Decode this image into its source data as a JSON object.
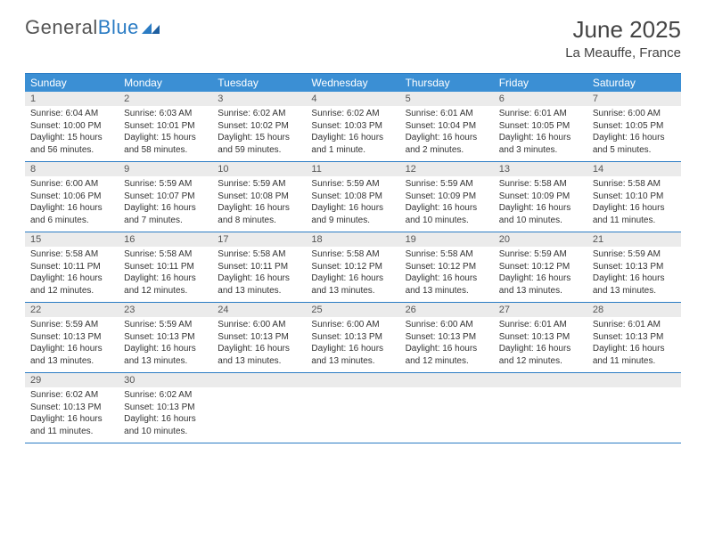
{
  "logo": {
    "part1": "General",
    "part2": "Blue"
  },
  "title": "June 2025",
  "location": "La Meauffe, France",
  "colors": {
    "header_bar": "#3b8fd4",
    "border": "#2b7cc4",
    "daynum_bg": "#ebebeb",
    "text": "#333333",
    "logo_gray": "#555555",
    "logo_blue": "#2b7cc4"
  },
  "day_headers": [
    "Sunday",
    "Monday",
    "Tuesday",
    "Wednesday",
    "Thursday",
    "Friday",
    "Saturday"
  ],
  "weeks": [
    [
      {
        "n": "1",
        "sunrise": "6:04 AM",
        "sunset": "10:00 PM",
        "daylight": "15 hours and 56 minutes."
      },
      {
        "n": "2",
        "sunrise": "6:03 AM",
        "sunset": "10:01 PM",
        "daylight": "15 hours and 58 minutes."
      },
      {
        "n": "3",
        "sunrise": "6:02 AM",
        "sunset": "10:02 PM",
        "daylight": "15 hours and 59 minutes."
      },
      {
        "n": "4",
        "sunrise": "6:02 AM",
        "sunset": "10:03 PM",
        "daylight": "16 hours and 1 minute."
      },
      {
        "n": "5",
        "sunrise": "6:01 AM",
        "sunset": "10:04 PM",
        "daylight": "16 hours and 2 minutes."
      },
      {
        "n": "6",
        "sunrise": "6:01 AM",
        "sunset": "10:05 PM",
        "daylight": "16 hours and 3 minutes."
      },
      {
        "n": "7",
        "sunrise": "6:00 AM",
        "sunset": "10:05 PM",
        "daylight": "16 hours and 5 minutes."
      }
    ],
    [
      {
        "n": "8",
        "sunrise": "6:00 AM",
        "sunset": "10:06 PM",
        "daylight": "16 hours and 6 minutes."
      },
      {
        "n": "9",
        "sunrise": "5:59 AM",
        "sunset": "10:07 PM",
        "daylight": "16 hours and 7 minutes."
      },
      {
        "n": "10",
        "sunrise": "5:59 AM",
        "sunset": "10:08 PM",
        "daylight": "16 hours and 8 minutes."
      },
      {
        "n": "11",
        "sunrise": "5:59 AM",
        "sunset": "10:08 PM",
        "daylight": "16 hours and 9 minutes."
      },
      {
        "n": "12",
        "sunrise": "5:59 AM",
        "sunset": "10:09 PM",
        "daylight": "16 hours and 10 minutes."
      },
      {
        "n": "13",
        "sunrise": "5:58 AM",
        "sunset": "10:09 PM",
        "daylight": "16 hours and 10 minutes."
      },
      {
        "n": "14",
        "sunrise": "5:58 AM",
        "sunset": "10:10 PM",
        "daylight": "16 hours and 11 minutes."
      }
    ],
    [
      {
        "n": "15",
        "sunrise": "5:58 AM",
        "sunset": "10:11 PM",
        "daylight": "16 hours and 12 minutes."
      },
      {
        "n": "16",
        "sunrise": "5:58 AM",
        "sunset": "10:11 PM",
        "daylight": "16 hours and 12 minutes."
      },
      {
        "n": "17",
        "sunrise": "5:58 AM",
        "sunset": "10:11 PM",
        "daylight": "16 hours and 13 minutes."
      },
      {
        "n": "18",
        "sunrise": "5:58 AM",
        "sunset": "10:12 PM",
        "daylight": "16 hours and 13 minutes."
      },
      {
        "n": "19",
        "sunrise": "5:58 AM",
        "sunset": "10:12 PM",
        "daylight": "16 hours and 13 minutes."
      },
      {
        "n": "20",
        "sunrise": "5:59 AM",
        "sunset": "10:12 PM",
        "daylight": "16 hours and 13 minutes."
      },
      {
        "n": "21",
        "sunrise": "5:59 AM",
        "sunset": "10:13 PM",
        "daylight": "16 hours and 13 minutes."
      }
    ],
    [
      {
        "n": "22",
        "sunrise": "5:59 AM",
        "sunset": "10:13 PM",
        "daylight": "16 hours and 13 minutes."
      },
      {
        "n": "23",
        "sunrise": "5:59 AM",
        "sunset": "10:13 PM",
        "daylight": "16 hours and 13 minutes."
      },
      {
        "n": "24",
        "sunrise": "6:00 AM",
        "sunset": "10:13 PM",
        "daylight": "16 hours and 13 minutes."
      },
      {
        "n": "25",
        "sunrise": "6:00 AM",
        "sunset": "10:13 PM",
        "daylight": "16 hours and 13 minutes."
      },
      {
        "n": "26",
        "sunrise": "6:00 AM",
        "sunset": "10:13 PM",
        "daylight": "16 hours and 12 minutes."
      },
      {
        "n": "27",
        "sunrise": "6:01 AM",
        "sunset": "10:13 PM",
        "daylight": "16 hours and 12 minutes."
      },
      {
        "n": "28",
        "sunrise": "6:01 AM",
        "sunset": "10:13 PM",
        "daylight": "16 hours and 11 minutes."
      }
    ],
    [
      {
        "n": "29",
        "sunrise": "6:02 AM",
        "sunset": "10:13 PM",
        "daylight": "16 hours and 11 minutes."
      },
      {
        "n": "30",
        "sunrise": "6:02 AM",
        "sunset": "10:13 PM",
        "daylight": "16 hours and 10 minutes."
      },
      null,
      null,
      null,
      null,
      null
    ]
  ],
  "labels": {
    "sunrise": "Sunrise: ",
    "sunset": "Sunset: ",
    "daylight": "Daylight: "
  }
}
